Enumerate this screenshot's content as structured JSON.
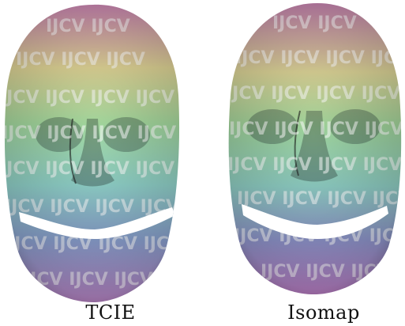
{
  "panels": [
    {
      "id": "left",
      "caption": "TCIE",
      "watermark_text": "IJCV",
      "band_colors": [
        "#c980b4",
        "#e0d596",
        "#a3d79d",
        "#8fd0c8",
        "#8aa0cf",
        "#bf83c6"
      ]
    },
    {
      "id": "right",
      "caption": "Isomap",
      "watermark_text": "IJCV",
      "band_colors": [
        "#c47fb0",
        "#dcd497",
        "#9fd39a",
        "#8ecdc3",
        "#8f95cc",
        "#c07cc4"
      ]
    }
  ]
}
